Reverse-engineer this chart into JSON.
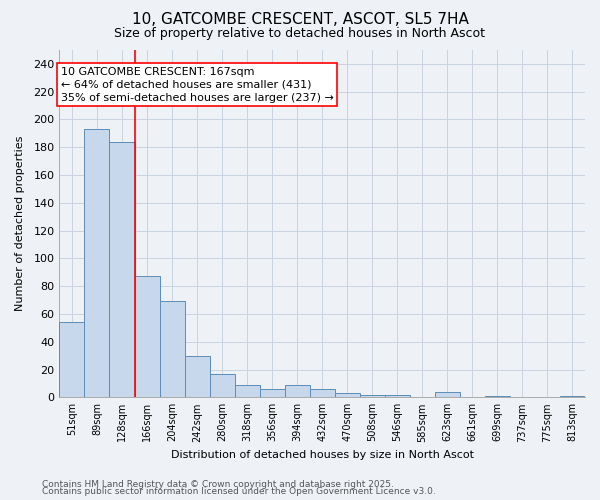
{
  "title1": "10, GATCOMBE CRESCENT, ASCOT, SL5 7HA",
  "title2": "Size of property relative to detached houses in North Ascot",
  "xlabel": "Distribution of detached houses by size in North Ascot",
  "ylabel": "Number of detached properties",
  "categories": [
    "51sqm",
    "89sqm",
    "128sqm",
    "166sqm",
    "204sqm",
    "242sqm",
    "280sqm",
    "318sqm",
    "356sqm",
    "394sqm",
    "432sqm",
    "470sqm",
    "508sqm",
    "546sqm",
    "585sqm",
    "623sqm",
    "661sqm",
    "699sqm",
    "737sqm",
    "775sqm",
    "813sqm"
  ],
  "values": [
    54,
    193,
    184,
    87,
    69,
    30,
    17,
    9,
    6,
    9,
    6,
    3,
    2,
    2,
    0,
    4,
    0,
    1,
    0,
    0,
    1
  ],
  "bar_color": "#c8d8ec",
  "bar_edge_color": "#5b8db8",
  "property_line_x": 2.5,
  "annotation_box_text": "10 GATCOMBE CRESCENT: 167sqm\n← 64% of detached houses are smaller (431)\n35% of semi-detached houses are larger (237) →",
  "ylim": [
    0,
    250
  ],
  "yticks": [
    0,
    20,
    40,
    60,
    80,
    100,
    120,
    140,
    160,
    180,
    200,
    220,
    240
  ],
  "grid_color": "#c8d4e0",
  "bg_color": "#eef2f7",
  "footnote1": "Contains HM Land Registry data © Crown copyright and database right 2025.",
  "footnote2": "Contains public sector information licensed under the Open Government Licence v3.0.",
  "title_fontsize": 11,
  "subtitle_fontsize": 9,
  "annotation_fontsize": 8,
  "footnote_fontsize": 6.5
}
